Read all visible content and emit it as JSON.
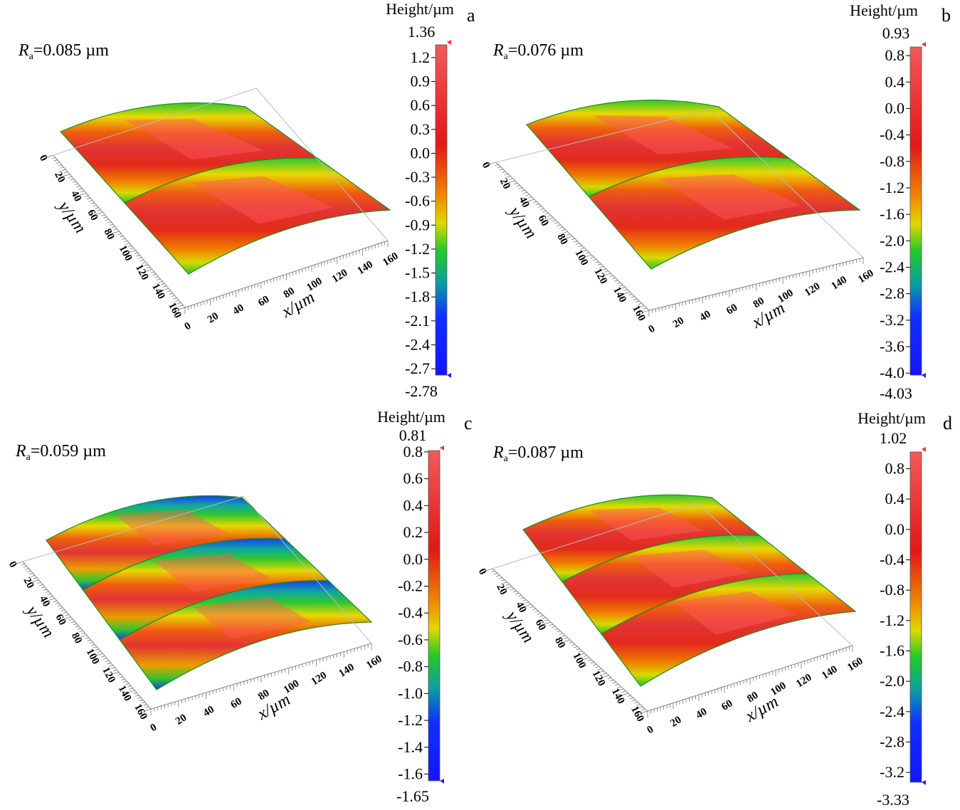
{
  "figure": {
    "units_label": "Height/µm"
  },
  "chart_data": [
    {
      "type": "surface3d",
      "panel_label": "a",
      "ra_symbol": "R",
      "ra_subscript": "a",
      "ra_value": "=0.085 µm",
      "xlabel": "x/µm",
      "ylabel": "y/µm",
      "x_ticks": [
        0,
        20,
        40,
        60,
        80,
        100,
        120,
        140,
        160
      ],
      "y_ticks": [
        0,
        20,
        40,
        60,
        80,
        100,
        120,
        140,
        160
      ],
      "colorbar": {
        "title": "Height/µm",
        "max_label": "1.36",
        "min_label": "-2.78",
        "max": 1.36,
        "min": -2.78,
        "ticks": [
          "1.2",
          "0.9",
          "0.6",
          "0.3",
          "0.0",
          "-0.3",
          "-0.6",
          "-0.9",
          "-1.2",
          "-1.5",
          "-1.8",
          "-2.1",
          "-2.4",
          "-2.7"
        ]
      },
      "ridges": 2
    },
    {
      "type": "surface3d",
      "panel_label": "b",
      "ra_symbol": "R",
      "ra_subscript": "a",
      "ra_value": "=0.076 µm",
      "xlabel": "x/µm",
      "ylabel": "y/µm",
      "x_ticks": [
        0,
        20,
        40,
        60,
        80,
        100,
        120,
        140,
        160
      ],
      "y_ticks": [
        0,
        20,
        40,
        60,
        80,
        100,
        120,
        140,
        160
      ],
      "colorbar": {
        "title": "Height/µm",
        "max_label": "0.93",
        "min_label": "-4.03",
        "max": 0.93,
        "min": -4.03,
        "ticks": [
          "0.8",
          "0.4",
          "0.0",
          "-0.4",
          "-0.8",
          "-1.2",
          "-1.6",
          "-2.0",
          "-2.4",
          "-2.8",
          "-3.2",
          "-3.6",
          "-4.0"
        ]
      },
      "ridges": 2
    },
    {
      "type": "surface3d",
      "panel_label": "c",
      "ra_symbol": "R",
      "ra_subscript": "a",
      "ra_value": "=0.059 µm",
      "xlabel": "x/µm",
      "ylabel": "y/µm",
      "x_ticks": [
        0,
        20,
        40,
        60,
        80,
        100,
        120,
        140,
        160
      ],
      "y_ticks": [
        0,
        20,
        40,
        60,
        80,
        100,
        120,
        140,
        160
      ],
      "colorbar": {
        "title": "Height/µm",
        "max_label": "0.81",
        "min_label": "-1.65",
        "max": 0.81,
        "min": -1.65,
        "ticks": [
          "0.8",
          "0.6",
          "0.4",
          "0.2",
          "0.0",
          "-0.2",
          "-0.4",
          "-0.6",
          "-0.8",
          "-1.0",
          "-1.2",
          "-1.4",
          "-1.6"
        ]
      },
      "ridges": 3
    },
    {
      "type": "surface3d",
      "panel_label": "d",
      "ra_symbol": "R",
      "ra_subscript": "a",
      "ra_value": "=0.087 µm",
      "xlabel": "x/µm",
      "ylabel": "y/µm",
      "x_ticks": [
        0,
        20,
        40,
        60,
        80,
        100,
        120,
        140,
        160
      ],
      "y_ticks": [
        0,
        20,
        40,
        60,
        80,
        100,
        120,
        140,
        160
      ],
      "colorbar": {
        "title": "Height/µm",
        "max_label": "1.02",
        "min_label": "-3.33",
        "max": 1.02,
        "min": -3.33,
        "ticks": [
          "0.8",
          "0.4",
          "0.0",
          "-0.4",
          "-0.8",
          "-1.2",
          "-1.6",
          "-2.0",
          "-2.4",
          "-2.8",
          "-3.2"
        ]
      },
      "ridges": 3
    }
  ]
}
